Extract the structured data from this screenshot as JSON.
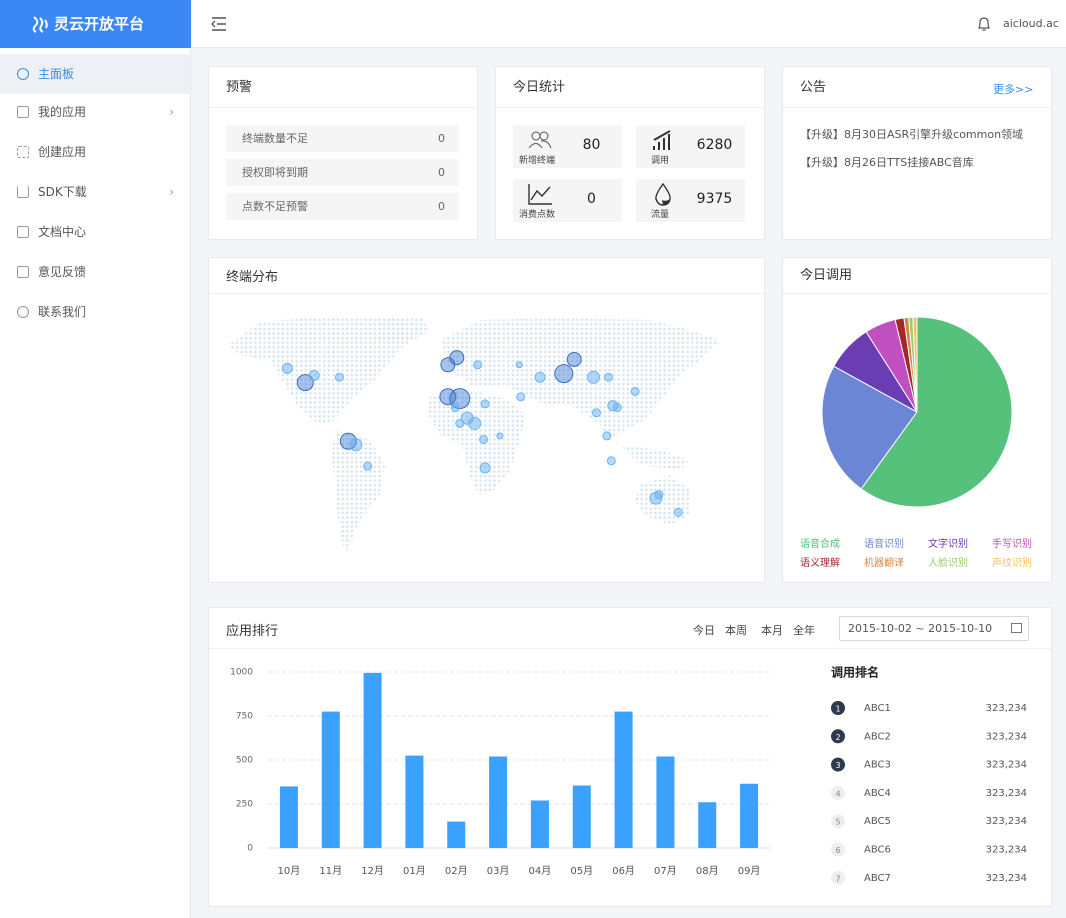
{
  "sidebar": {
    "brand": "灵云开放平台",
    "menu": [
      "主面板",
      "我的应用",
      "创建应用",
      "SDK下载",
      "文档中心",
      "意见反馈",
      "联系我们"
    ]
  },
  "header": {
    "user": "aicloud.ac"
  },
  "alerts": {
    "title": "预警",
    "items": [
      {
        "label": "终端数量不足",
        "value": 0
      },
      {
        "label": "授权即将到期",
        "value": 0
      },
      {
        "label": "点数不足预警",
        "value": 0
      }
    ]
  },
  "stats": {
    "title": "今日统计",
    "items": [
      {
        "label": "新增终端",
        "value": 80
      },
      {
        "label": "调用",
        "value": 6280
      },
      {
        "label": "消费点数",
        "value": 0
      },
      {
        "label": "流量",
        "value": 9375
      }
    ]
  },
  "notice": {
    "title": "公告",
    "more": "更多>>",
    "items": [
      "【升级】8月30日ASR引擎升级common领域",
      "【升级】8月26日TTS挂接ABC音库"
    ]
  },
  "map": {
    "title": "终端分布",
    "points": [
      {
        "lon": -128,
        "lat": 50,
        "size": 5
      },
      {
        "lon": -116,
        "lat": 42,
        "size": 8
      },
      {
        "lon": -110,
        "lat": 46,
        "size": 5
      },
      {
        "lon": -93,
        "lat": 45,
        "size": 4
      },
      {
        "lon": -87,
        "lat": 9,
        "size": 8
      },
      {
        "lon": -82,
        "lat": 7,
        "size": 6
      },
      {
        "lon": -74,
        "lat": -5,
        "size": 4
      },
      {
        "lon": -20,
        "lat": 52,
        "size": 7
      },
      {
        "lon": -14,
        "lat": 56,
        "size": 7
      },
      {
        "lon": -20,
        "lat": 34,
        "size": 8
      },
      {
        "lon": -12,
        "lat": 33,
        "size": 10
      },
      {
        "lon": -15,
        "lat": 28,
        "size": 4
      },
      {
        "lon": 0,
        "lat": 52,
        "size": 4
      },
      {
        "lon": 5,
        "lat": 30,
        "size": 4
      },
      {
        "lon": -7,
        "lat": 22,
        "size": 6
      },
      {
        "lon": -2,
        "lat": 19,
        "size": 6
      },
      {
        "lon": -12,
        "lat": 19,
        "size": 4
      },
      {
        "lon": 4,
        "lat": 10,
        "size": 4
      },
      {
        "lon": 15,
        "lat": 12,
        "size": 3
      },
      {
        "lon": 5,
        "lat": -6,
        "size": 5
      },
      {
        "lon": 29,
        "lat": 34,
        "size": 4
      },
      {
        "lon": 28,
        "lat": 52,
        "size": 3
      },
      {
        "lon": 42,
        "lat": 45,
        "size": 5
      },
      {
        "lon": 58,
        "lat": 47,
        "size": 9
      },
      {
        "lon": 65,
        "lat": 55,
        "size": 7
      },
      {
        "lon": 78,
        "lat": 45,
        "size": 6
      },
      {
        "lon": 88,
        "lat": 45,
        "size": 4
      },
      {
        "lon": 106,
        "lat": 37,
        "size": 4
      },
      {
        "lon": 91,
        "lat": 29,
        "size": 5
      },
      {
        "lon": 94,
        "lat": 28,
        "size": 4
      },
      {
        "lon": 80,
        "lat": 25,
        "size": 4
      },
      {
        "lon": 87,
        "lat": 12,
        "size": 4
      },
      {
        "lon": 90,
        "lat": -2,
        "size": 4
      },
      {
        "lon": 120,
        "lat": -23,
        "size": 6
      },
      {
        "lon": 122,
        "lat": -21,
        "size": 4
      },
      {
        "lon": 135,
        "lat": -31,
        "size": 4
      }
    ]
  },
  "chart_data": [
    {
      "type": "pie",
      "title": "今日调用",
      "categories": [
        "语音合成",
        "语音识别",
        "文字识别",
        "手写识别",
        "语义理解",
        "机器翻译",
        "人脸识别",
        "声纹识别"
      ],
      "values": [
        60,
        23,
        8,
        5.3,
        1.5,
        0.8,
        0.7,
        0.7
      ],
      "colors": [
        "#55c17a",
        "#6c86d6",
        "#6a3db4",
        "#c04fbf",
        "#a3282b",
        "#cf8a45",
        "#9ccc67",
        "#f1c462"
      ]
    },
    {
      "type": "bar",
      "title": "应用排行",
      "categories": [
        "10月",
        "11月",
        "12月",
        "01月",
        "02月",
        "03月",
        "04月",
        "05月",
        "06月",
        "07月",
        "08月",
        "09月"
      ],
      "values": [
        350,
        775,
        995,
        525,
        150,
        520,
        270,
        355,
        775,
        520,
        260,
        365
      ],
      "color": "#3ba1ff",
      "ylim": [
        0,
        1000
      ],
      "yticks": [
        0,
        250,
        500,
        750,
        1000
      ],
      "grid": true
    }
  ],
  "ranking_panel": {
    "tabs": [
      "今日",
      "本周",
      "本月",
      "全年"
    ],
    "date_range": "2015-10-02 ~ 2015-10-10"
  },
  "ranking": {
    "title": "调用排名",
    "items": [
      {
        "rank": 1,
        "name": "ABC1",
        "value": "323,234"
      },
      {
        "rank": 2,
        "name": "ABC2",
        "value": "323,234"
      },
      {
        "rank": 3,
        "name": "ABC3",
        "value": "323,234"
      },
      {
        "rank": 4,
        "name": "ABC4",
        "value": "323,234"
      },
      {
        "rank": 5,
        "name": "ABC5",
        "value": "323,234"
      },
      {
        "rank": 6,
        "name": "ABC6",
        "value": "323,234"
      },
      {
        "rank": 7,
        "name": "ABC7",
        "value": "323,234"
      }
    ]
  }
}
